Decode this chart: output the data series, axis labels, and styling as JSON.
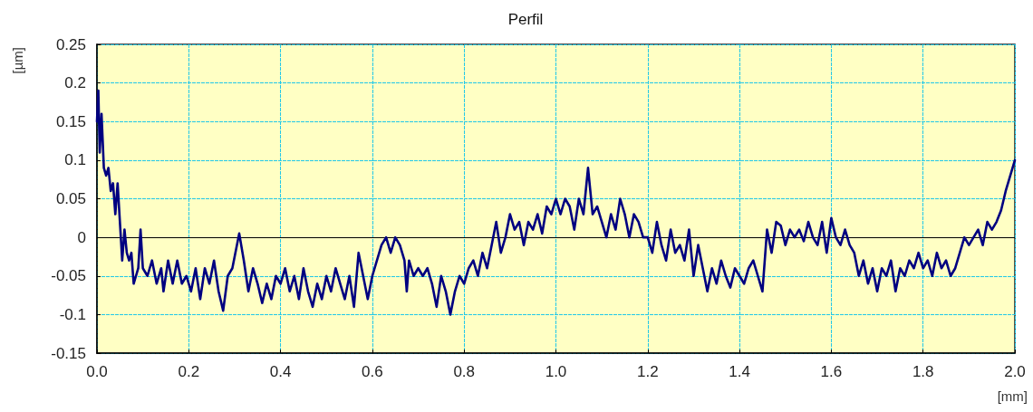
{
  "chart_data": {
    "type": "line",
    "title": "Perfil",
    "xlabel": "[mm]",
    "ylabel": "[µm]",
    "xlim": [
      0,
      2
    ],
    "ylim": [
      -0.15,
      0.25
    ],
    "xticks": [
      {
        "value": 0,
        "label": "0.0"
      },
      {
        "value": 0.2,
        "label": "0.2"
      },
      {
        "value": 0.4,
        "label": "0.4"
      },
      {
        "value": 0.6,
        "label": "0.6"
      },
      {
        "value": 0.8,
        "label": "0.8"
      },
      {
        "value": 1,
        "label": "1.0"
      },
      {
        "value": 1.2,
        "label": "1.2"
      },
      {
        "value": 1.4,
        "label": "1.4"
      },
      {
        "value": 1.6,
        "label": "1.6"
      },
      {
        "value": 1.8,
        "label": "1.8"
      },
      {
        "value": 2,
        "label": "2.0"
      }
    ],
    "yticks": [
      -0.15,
      -0.1,
      -0.05,
      0,
      0.05,
      0.1,
      0.15,
      0.2,
      0.25
    ],
    "grid": true,
    "marker": "none",
    "line_style": "solid",
    "ref_lines": [
      {
        "axis": "y",
        "value": 0,
        "color": "#000000"
      }
    ],
    "series": [
      {
        "color": "#000080",
        "x": [
          0,
          0.003,
          0.006,
          0.01,
          0.015,
          0.02,
          0.025,
          0.03,
          0.035,
          0.04,
          0.045,
          0.05,
          0.055,
          0.06,
          0.065,
          0.07,
          0.075,
          0.08,
          0.085,
          0.09,
          0.095,
          0.1,
          0.11,
          0.12,
          0.13,
          0.14,
          0.145,
          0.155,
          0.165,
          0.175,
          0.185,
          0.195,
          0.205,
          0.215,
          0.225,
          0.235,
          0.245,
          0.255,
          0.265,
          0.275,
          0.285,
          0.295,
          0.31,
          0.32,
          0.33,
          0.34,
          0.35,
          0.36,
          0.37,
          0.38,
          0.39,
          0.4,
          0.41,
          0.42,
          0.43,
          0.44,
          0.45,
          0.46,
          0.47,
          0.48,
          0.49,
          0.5,
          0.51,
          0.52,
          0.53,
          0.54,
          0.55,
          0.56,
          0.57,
          0.58,
          0.59,
          0.6,
          0.61,
          0.62,
          0.63,
          0.64,
          0.65,
          0.66,
          0.67,
          0.675,
          0.68,
          0.69,
          0.7,
          0.71,
          0.72,
          0.73,
          0.74,
          0.75,
          0.76,
          0.77,
          0.78,
          0.79,
          0.8,
          0.81,
          0.82,
          0.83,
          0.84,
          0.85,
          0.86,
          0.87,
          0.88,
          0.89,
          0.9,
          0.91,
          0.92,
          0.93,
          0.94,
          0.95,
          0.96,
          0.97,
          0.98,
          0.99,
          1,
          1.01,
          1.02,
          1.03,
          1.04,
          1.05,
          1.06,
          1.07,
          1.08,
          1.09,
          1.1,
          1.11,
          1.12,
          1.13,
          1.14,
          1.15,
          1.16,
          1.17,
          1.18,
          1.19,
          1.2,
          1.21,
          1.22,
          1.23,
          1.24,
          1.25,
          1.26,
          1.27,
          1.28,
          1.29,
          1.3,
          1.31,
          1.32,
          1.33,
          1.34,
          1.35,
          1.36,
          1.37,
          1.38,
          1.39,
          1.4,
          1.41,
          1.42,
          1.43,
          1.44,
          1.45,
          1.46,
          1.47,
          1.48,
          1.49,
          1.5,
          1.51,
          1.52,
          1.53,
          1.54,
          1.55,
          1.56,
          1.57,
          1.58,
          1.59,
          1.6,
          1.61,
          1.62,
          1.63,
          1.64,
          1.65,
          1.66,
          1.67,
          1.68,
          1.69,
          1.7,
          1.71,
          1.72,
          1.73,
          1.74,
          1.75,
          1.76,
          1.77,
          1.78,
          1.79,
          1.8,
          1.81,
          1.82,
          1.83,
          1.84,
          1.85,
          1.86,
          1.87,
          1.88,
          1.89,
          1.9,
          1.91,
          1.92,
          1.93,
          1.94,
          1.95,
          1.96,
          1.97,
          1.98,
          1.99,
          2
        ],
        "values": [
          0.15,
          0.19,
          0.11,
          0.16,
          0.09,
          0.08,
          0.09,
          0.06,
          0.07,
          0.03,
          0.07,
          0.02,
          -0.03,
          0.01,
          -0.02,
          -0.03,
          -0.02,
          -0.06,
          -0.05,
          -0.04,
          0.01,
          -0.04,
          -0.05,
          -0.03,
          -0.06,
          -0.04,
          -0.07,
          -0.03,
          -0.06,
          -0.03,
          -0.06,
          -0.05,
          -0.07,
          -0.04,
          -0.08,
          -0.04,
          -0.06,
          -0.03,
          -0.07,
          -0.095,
          -0.05,
          -0.04,
          0.005,
          -0.03,
          -0.07,
          -0.04,
          -0.06,
          -0.085,
          -0.06,
          -0.08,
          -0.05,
          -0.06,
          -0.04,
          -0.07,
          -0.05,
          -0.08,
          -0.04,
          -0.07,
          -0.09,
          -0.06,
          -0.08,
          -0.05,
          -0.07,
          -0.04,
          -0.06,
          -0.08,
          -0.05,
          -0.09,
          -0.02,
          -0.05,
          -0.08,
          -0.05,
          -0.03,
          -0.01,
          0,
          -0.02,
          0,
          -0.01,
          -0.03,
          -0.07,
          -0.03,
          -0.05,
          -0.04,
          -0.05,
          -0.04,
          -0.06,
          -0.09,
          -0.05,
          -0.07,
          -0.1,
          -0.07,
          -0.05,
          -0.06,
          -0.04,
          -0.03,
          -0.05,
          -0.02,
          -0.04,
          -0.01,
          0.02,
          -0.02,
          0,
          0.03,
          0.01,
          0.02,
          -0.01,
          0.02,
          0.01,
          0.03,
          0.005,
          0.04,
          0.03,
          0.05,
          0.03,
          0.05,
          0.04,
          0.01,
          0.05,
          0.03,
          0.09,
          0.03,
          0.04,
          0.02,
          0,
          0.03,
          0.01,
          0.05,
          0.03,
          0,
          0.03,
          0.02,
          0,
          0,
          -0.02,
          0.02,
          -0.01,
          -0.03,
          0.01,
          -0.02,
          -0.01,
          -0.03,
          0.01,
          -0.05,
          -0.01,
          -0.04,
          -0.07,
          -0.04,
          -0.06,
          -0.03,
          -0.05,
          -0.065,
          -0.04,
          -0.05,
          -0.06,
          -0.04,
          -0.03,
          -0.05,
          -0.07,
          0.01,
          -0.02,
          0.02,
          0.015,
          -0.01,
          0.01,
          0,
          0.01,
          -0.005,
          0.02,
          0,
          -0.01,
          0.02,
          -0.02,
          0.025,
          0,
          -0.01,
          0.01,
          -0.01,
          -0.02,
          -0.05,
          -0.03,
          -0.06,
          -0.04,
          -0.07,
          -0.04,
          -0.05,
          -0.03,
          -0.07,
          -0.04,
          -0.05,
          -0.03,
          -0.04,
          -0.02,
          -0.04,
          -0.03,
          -0.05,
          -0.02,
          -0.04,
          -0.03,
          -0.05,
          -0.04,
          -0.02,
          0,
          -0.01,
          0,
          0.01,
          -0.01,
          0.02,
          0.01,
          0.02,
          0.035,
          0.06,
          0.08,
          0.1
        ]
      }
    ]
  }
}
